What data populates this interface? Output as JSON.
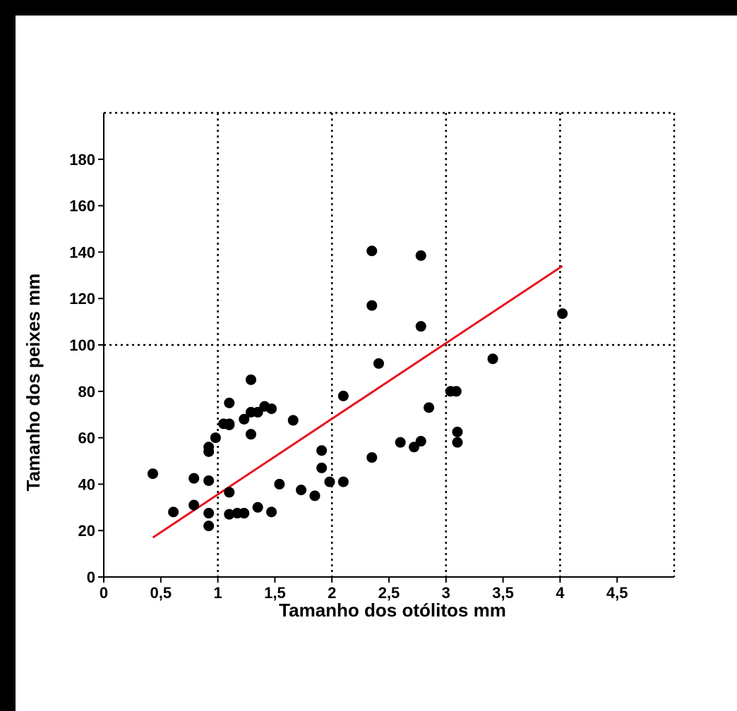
{
  "chart_data": {
    "type": "scatter",
    "xlabel": "Tamanho dos otólitos mm",
    "ylabel": "Tamanho dos peixes mm",
    "xlim": [
      0,
      5
    ],
    "ylim": [
      0,
      200
    ],
    "x_ticks": [
      {
        "value": 0,
        "label": "0"
      },
      {
        "value": 0.5,
        "label": "0,5"
      },
      {
        "value": 1,
        "label": "1"
      },
      {
        "value": 1.5,
        "label": "1,5"
      },
      {
        "value": 2,
        "label": "2"
      },
      {
        "value": 2.5,
        "label": "2,5"
      },
      {
        "value": 3,
        "label": "3"
      },
      {
        "value": 3.5,
        "label": "3,5"
      },
      {
        "value": 4,
        "label": "4"
      },
      {
        "value": 4.5,
        "label": "4,5"
      }
    ],
    "y_ticks": [
      {
        "value": 0,
        "label": "0"
      },
      {
        "value": 20,
        "label": "20"
      },
      {
        "value": 40,
        "label": "40"
      },
      {
        "value": 60,
        "label": "60"
      },
      {
        "value": 80,
        "label": "80"
      },
      {
        "value": 100,
        "label": "100"
      },
      {
        "value": 120,
        "label": "120"
      },
      {
        "value": 140,
        "label": "140"
      },
      {
        "value": 160,
        "label": "160"
      },
      {
        "value": 180,
        "label": "180"
      }
    ],
    "grid": {
      "x_lines": [
        1,
        2,
        3,
        4
      ],
      "y_lines": [
        100
      ],
      "style": "dotted"
    },
    "point_color": "#000000",
    "trend_color": "#e8141e",
    "points": [
      [
        0.43,
        44.5
      ],
      [
        0.61,
        28
      ],
      [
        0.79,
        42.5
      ],
      [
        0.79,
        31
      ],
      [
        0.92,
        56
      ],
      [
        0.92,
        54
      ],
      [
        0.92,
        41.5
      ],
      [
        0.92,
        27.5
      ],
      [
        0.92,
        22
      ],
      [
        0.98,
        60
      ],
      [
        1.05,
        66
      ],
      [
        1.1,
        75
      ],
      [
        1.1,
        66
      ],
      [
        1.1,
        65.5
      ],
      [
        1.1,
        36.5
      ],
      [
        1.1,
        27
      ],
      [
        1.17,
        27.5
      ],
      [
        1.23,
        27.5
      ],
      [
        1.23,
        68
      ],
      [
        1.29,
        85
      ],
      [
        1.29,
        71
      ],
      [
        1.29,
        61.5
      ],
      [
        1.35,
        71
      ],
      [
        1.35,
        30
      ],
      [
        1.41,
        73.5
      ],
      [
        1.47,
        72.5
      ],
      [
        1.47,
        28
      ],
      [
        1.54,
        40
      ],
      [
        1.66,
        67.5
      ],
      [
        1.73,
        37.5
      ],
      [
        1.85,
        35
      ],
      [
        1.91,
        54.5
      ],
      [
        1.91,
        47
      ],
      [
        1.98,
        41
      ],
      [
        2.1,
        78
      ],
      [
        2.1,
        41
      ],
      [
        2.35,
        140.5
      ],
      [
        2.35,
        117
      ],
      [
        2.35,
        51.5
      ],
      [
        2.41,
        92
      ],
      [
        2.6,
        58
      ],
      [
        2.72,
        56
      ],
      [
        2.78,
        138.5
      ],
      [
        2.78,
        108
      ],
      [
        2.78,
        58.5
      ],
      [
        2.85,
        73
      ],
      [
        3.04,
        80
      ],
      [
        3.09,
        80
      ],
      [
        3.1,
        62.5
      ],
      [
        3.1,
        58
      ],
      [
        3.41,
        94
      ],
      [
        4.02,
        113.5
      ]
    ],
    "trendline": {
      "x": [
        0.43,
        4.02
      ],
      "y": [
        17,
        134
      ]
    }
  }
}
